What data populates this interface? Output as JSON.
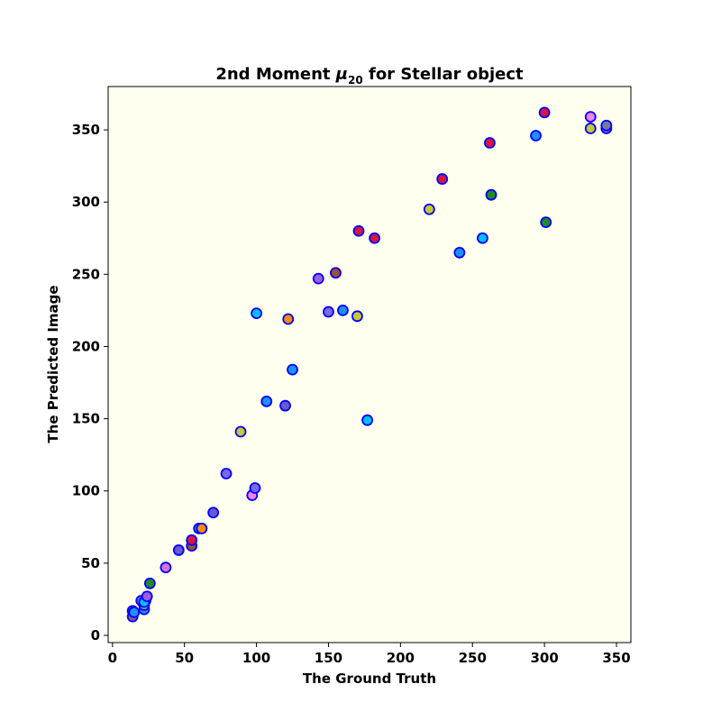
{
  "chart_data": {
    "type": "scatter",
    "title_prefix": "2nd Moment ",
    "title_symbol": "μ",
    "title_subscript": "20",
    "title_suffix": " for Stellar object",
    "xlabel": "The Ground Truth",
    "ylabel": "The Predicted Image",
    "xlim": [
      -3,
      360
    ],
    "ylim": [
      -5,
      380
    ],
    "xticks": [
      0,
      50,
      100,
      150,
      200,
      250,
      300,
      350
    ],
    "yticks": [
      0,
      50,
      100,
      150,
      200,
      250,
      300,
      350
    ],
    "grid": false,
    "legend": false,
    "colors": {
      "plot_background": "#fffff0",
      "marker_edge": "#0000ff"
    },
    "points": [
      {
        "x": 14,
        "y": 17,
        "color": "#1e90ff"
      },
      {
        "x": 14,
        "y": 13,
        "color": "#8a5a8a"
      },
      {
        "x": 15,
        "y": 16,
        "color": "#1e90ff"
      },
      {
        "x": 20,
        "y": 24,
        "color": "#7b68ee"
      },
      {
        "x": 22,
        "y": 18,
        "color": "#1e90ff"
      },
      {
        "x": 22,
        "y": 21,
        "color": "#c8c832"
      },
      {
        "x": 23,
        "y": 24,
        "color": "#ba55d3"
      },
      {
        "x": 22,
        "y": 23,
        "color": "#00bfff"
      },
      {
        "x": 24,
        "y": 27,
        "color": "#9b5fe0"
      },
      {
        "x": 26,
        "y": 36,
        "color": "#228b22"
      },
      {
        "x": 37,
        "y": 47,
        "color": "#da70d6"
      },
      {
        "x": 46,
        "y": 59,
        "color": "#6a5acd"
      },
      {
        "x": 55,
        "y": 62,
        "color": "#a0522d"
      },
      {
        "x": 55,
        "y": 66,
        "color": "#dc143c"
      },
      {
        "x": 60,
        "y": 74,
        "color": "#1e90ff"
      },
      {
        "x": 62,
        "y": 74,
        "color": "#ff8c00"
      },
      {
        "x": 70,
        "y": 85,
        "color": "#6a5acd"
      },
      {
        "x": 79,
        "y": 112,
        "color": "#7b68ee"
      },
      {
        "x": 89,
        "y": 141,
        "color": "#c8c832"
      },
      {
        "x": 97,
        "y": 97,
        "color": "#ee82ee"
      },
      {
        "x": 99,
        "y": 102,
        "color": "#7b68ee"
      },
      {
        "x": 100,
        "y": 223,
        "color": "#00bfff"
      },
      {
        "x": 107,
        "y": 162,
        "color": "#1e90ff"
      },
      {
        "x": 120,
        "y": 159,
        "color": "#6a5acd"
      },
      {
        "x": 122,
        "y": 219,
        "color": "#ff8c00"
      },
      {
        "x": 125,
        "y": 184,
        "color": "#1e90ff"
      },
      {
        "x": 143,
        "y": 247,
        "color": "#9b5fe0"
      },
      {
        "x": 150,
        "y": 224,
        "color": "#7b68ee"
      },
      {
        "x": 155,
        "y": 251,
        "color": "#a0522d"
      },
      {
        "x": 160,
        "y": 225,
        "color": "#1e90ff"
      },
      {
        "x": 170,
        "y": 221,
        "color": "#c8c832"
      },
      {
        "x": 171,
        "y": 280,
        "color": "#dc143c"
      },
      {
        "x": 177,
        "y": 149,
        "color": "#00bfff"
      },
      {
        "x": 182,
        "y": 275,
        "color": "#dc143c"
      },
      {
        "x": 220,
        "y": 295,
        "color": "#c8c832"
      },
      {
        "x": 229,
        "y": 316,
        "color": "#dc143c"
      },
      {
        "x": 241,
        "y": 265,
        "color": "#1e90ff"
      },
      {
        "x": 257,
        "y": 275,
        "color": "#00bfff"
      },
      {
        "x": 262,
        "y": 341,
        "color": "#dc143c"
      },
      {
        "x": 263,
        "y": 305,
        "color": "#228b22"
      },
      {
        "x": 294,
        "y": 346,
        "color": "#1e90ff"
      },
      {
        "x": 300,
        "y": 362,
        "color": "#dc143c"
      },
      {
        "x": 301,
        "y": 286,
        "color": "#228b22"
      },
      {
        "x": 332,
        "y": 359,
        "color": "#ee82ee"
      },
      {
        "x": 332,
        "y": 351,
        "color": "#c8c832"
      },
      {
        "x": 343,
        "y": 351,
        "color": "#7b68ee"
      },
      {
        "x": 343,
        "y": 353,
        "color": "#708090"
      }
    ]
  }
}
